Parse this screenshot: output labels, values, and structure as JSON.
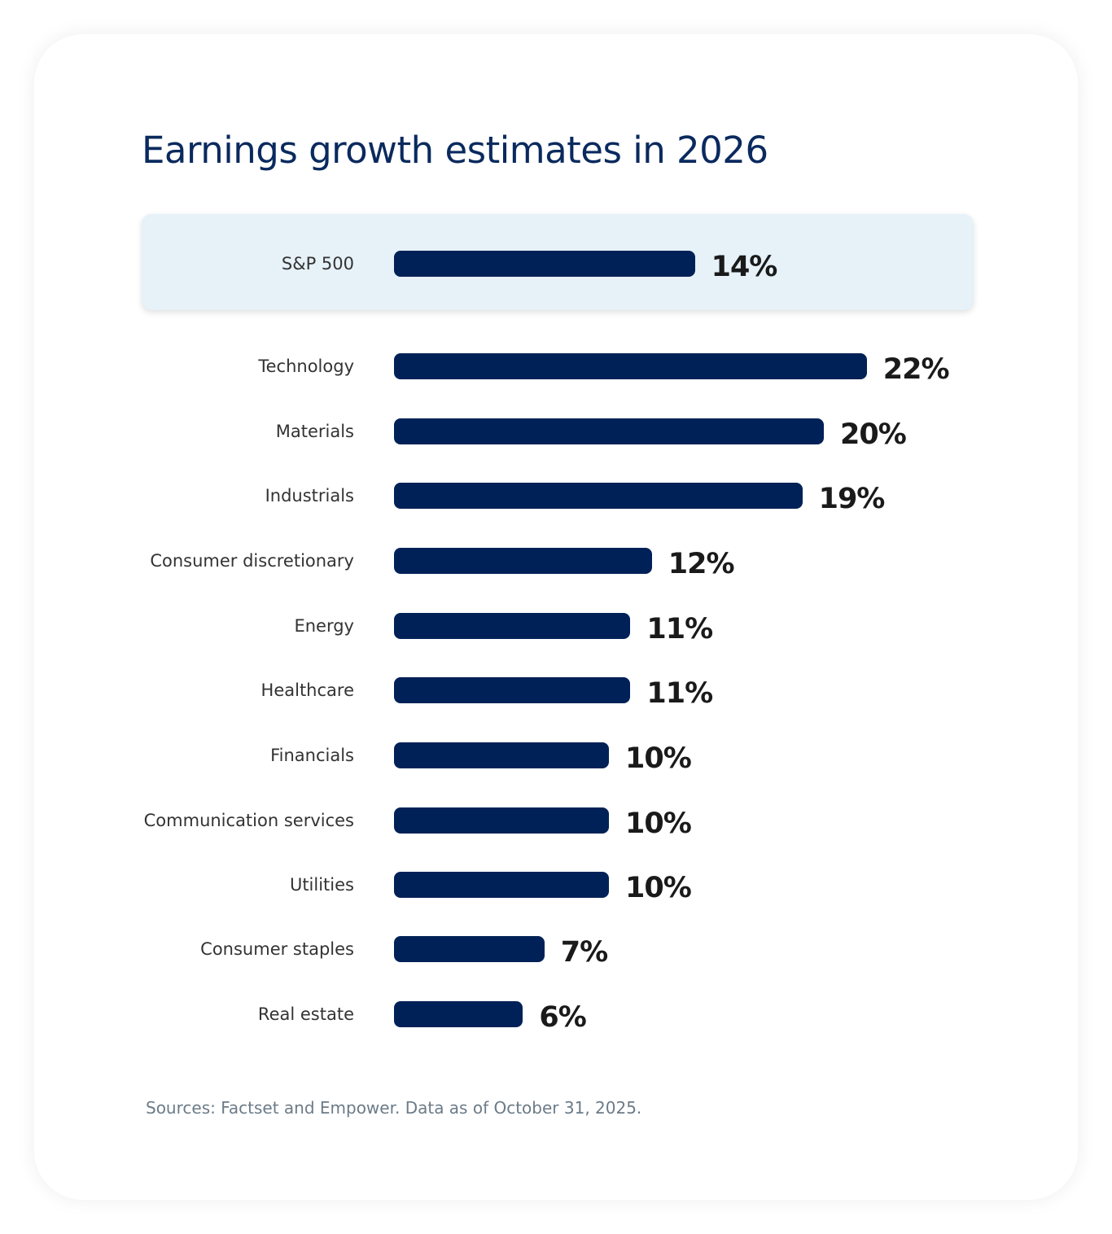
{
  "chart_data": {
    "type": "bar",
    "orientation": "horizontal",
    "title": "Earnings growth estimates in 2026",
    "categories": [
      "S&P 500",
      "Technology",
      "Materials",
      "Industrials",
      "Consumer discretionary",
      "Energy",
      "Healthcare",
      "Financials",
      "Communication services",
      "Utilities",
      "Consumer staples",
      "Real estate"
    ],
    "values": [
      14,
      22,
      20,
      19,
      12,
      11,
      11,
      10,
      10,
      10,
      7,
      6
    ],
    "value_labels": [
      "14%",
      "22%",
      "20%",
      "19%",
      "12%",
      "11%",
      "11%",
      "10%",
      "10%",
      "10%",
      "7%",
      "6%"
    ],
    "highlighted_category": "S&P 500",
    "bar_color": "#002157",
    "highlight_color": "#e6f1f8",
    "grid": false,
    "source": "Sources: Factset and Empower. Data as of October 31, 2025."
  }
}
